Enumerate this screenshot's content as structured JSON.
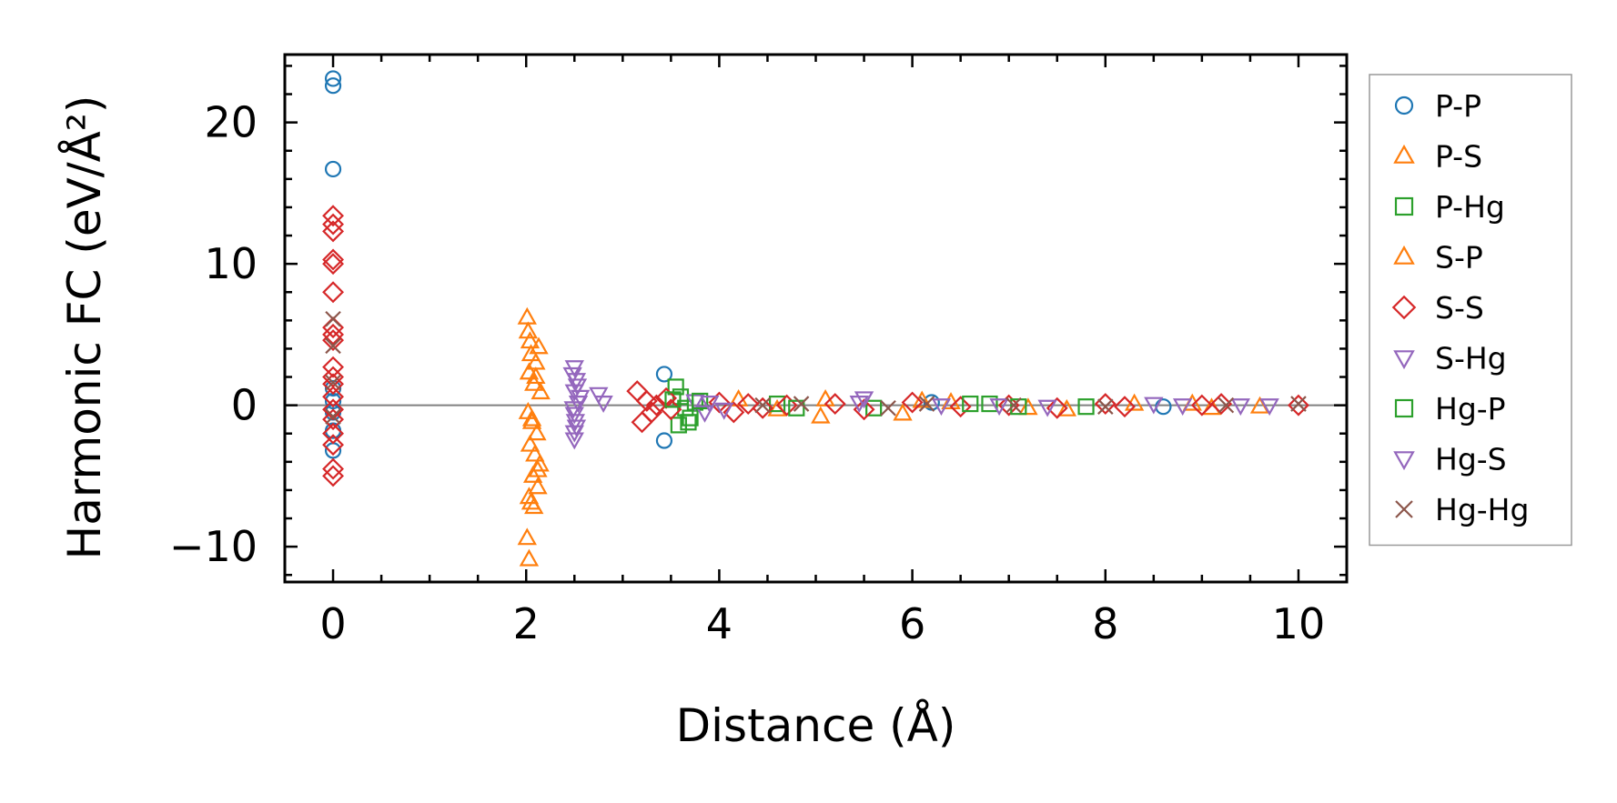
{
  "chart_data": {
    "type": "scatter",
    "xlabel": "Distance (Å)",
    "ylabel": "Harmonic FC (eV/Å²)",
    "xlim": [
      -0.5,
      10.5
    ],
    "ylim": [
      -12.5,
      24.8
    ],
    "x_ticks": [
      "0",
      "2",
      "4",
      "6",
      "8",
      "10"
    ],
    "x_tick_values": [
      0,
      2,
      4,
      6,
      8,
      10
    ],
    "y_ticks": [
      "−10",
      "0",
      "10",
      "20"
    ],
    "y_tick_values": [
      -10,
      0,
      10,
      20
    ],
    "x_minor_step": 0.5,
    "y_minor_step": 2,
    "zero_line": true,
    "grid": false,
    "legend_position": "outside-right",
    "series": [
      {
        "name": "P-P",
        "marker": "circle",
        "color": "#1f77b4",
        "points": [
          [
            0,
            23.1
          ],
          [
            0,
            22.6
          ],
          [
            0,
            16.7
          ],
          [
            0,
            1.2
          ],
          [
            0,
            0.3
          ],
          [
            0,
            -0.5
          ],
          [
            0,
            -1.8
          ],
          [
            0,
            -3.2
          ],
          [
            3.43,
            2.2
          ],
          [
            3.43,
            -2.5
          ],
          [
            6.2,
            0.2
          ],
          [
            8.6,
            -0.1
          ]
        ]
      },
      {
        "name": "P-S",
        "marker": "triangle-up",
        "color": "#ff7f0e",
        "points": [
          [
            2.01,
            6.2
          ],
          [
            2.02,
            5.2
          ],
          [
            2.05,
            3.6
          ],
          [
            2.1,
            3.0
          ],
          [
            2.13,
            4.1
          ],
          [
            2.03,
            2.3
          ],
          [
            2.08,
            1.5
          ],
          [
            2.15,
            0.9
          ],
          [
            2.02,
            -0.5
          ],
          [
            2.06,
            -1.2
          ],
          [
            2.11,
            -2.0
          ],
          [
            2.04,
            -2.8
          ],
          [
            2.09,
            -3.5
          ],
          [
            2.14,
            -4.2
          ],
          [
            2.07,
            -5.0
          ],
          [
            2.12,
            -5.8
          ],
          [
            2.03,
            -6.5
          ],
          [
            2.08,
            -7.2
          ],
          [
            2.01,
            -9.4
          ],
          [
            2.03,
            -10.9
          ],
          [
            4.6,
            -0.3
          ],
          [
            5.05,
            -0.8
          ],
          [
            5.1,
            0.4
          ],
          [
            5.9,
            -0.6
          ],
          [
            6.4,
            0.2
          ],
          [
            7.6,
            -0.3
          ],
          [
            8.3,
            0.1
          ],
          [
            9.1,
            -0.2
          ]
        ]
      },
      {
        "name": "P-Hg",
        "marker": "square",
        "color": "#2ca02c",
        "points": [
          [
            3.55,
            1.3
          ],
          [
            3.6,
            0.6
          ],
          [
            3.65,
            -0.2
          ],
          [
            3.7,
            -0.9
          ],
          [
            3.58,
            -1.4
          ],
          [
            3.75,
            0.2
          ],
          [
            4.6,
            0.1
          ],
          [
            5.6,
            -0.2
          ],
          [
            6.8,
            0.1
          ],
          [
            7.8,
            -0.1
          ]
        ]
      },
      {
        "name": "S-P",
        "marker": "triangle-up",
        "color": "#ff7f0e",
        "points": [
          [
            2.04,
            4.5
          ],
          [
            2.1,
            2.0
          ],
          [
            2.06,
            -1.0
          ],
          [
            2.12,
            -4.6
          ],
          [
            2.05,
            -6.9
          ],
          [
            4.2,
            0.4
          ],
          [
            6.1,
            0.3
          ],
          [
            7.2,
            -0.2
          ],
          [
            8.9,
            0.1
          ],
          [
            9.6,
            -0.1
          ]
        ]
      },
      {
        "name": "S-S",
        "marker": "diamond",
        "color": "#d62728",
        "points": [
          [
            0,
            13.4
          ],
          [
            0,
            12.8
          ],
          [
            0,
            12.3
          ],
          [
            0,
            10.3
          ],
          [
            0,
            10.0
          ],
          [
            0,
            8.0
          ],
          [
            0,
            5.5
          ],
          [
            0,
            5.0
          ],
          [
            0,
            4.6
          ],
          [
            0,
            2.7
          ],
          [
            0,
            2.0
          ],
          [
            0,
            1.5
          ],
          [
            0,
            0.6
          ],
          [
            0,
            -0.3
          ],
          [
            0,
            -1.0
          ],
          [
            0,
            -2.0
          ],
          [
            0,
            -2.8
          ],
          [
            0,
            -4.5
          ],
          [
            0,
            -5.0
          ],
          [
            3.15,
            1.0
          ],
          [
            3.2,
            -1.2
          ],
          [
            3.25,
            0.3
          ],
          [
            3.3,
            -0.5
          ],
          [
            3.35,
            0.0
          ],
          [
            3.45,
            0.5
          ],
          [
            3.5,
            -0.3
          ],
          [
            4.0,
            0.2
          ],
          [
            4.15,
            -0.5
          ],
          [
            4.3,
            0.1
          ],
          [
            4.45,
            -0.2
          ],
          [
            4.7,
            0.0
          ],
          [
            5.2,
            0.1
          ],
          [
            5.5,
            -0.3
          ],
          [
            6.0,
            0.2
          ],
          [
            6.5,
            -0.1
          ],
          [
            7.0,
            0.0
          ],
          [
            7.5,
            -0.2
          ],
          [
            8.0,
            0.1
          ],
          [
            8.2,
            -0.1
          ],
          [
            9.0,
            0.0
          ],
          [
            9.2,
            0.1
          ],
          [
            10.0,
            0.0
          ]
        ]
      },
      {
        "name": "S-Hg",
        "marker": "triangle-down",
        "color": "#9467bd",
        "points": [
          [
            2.5,
            2.7
          ],
          [
            2.52,
            1.8
          ],
          [
            2.5,
            1.0
          ],
          [
            2.54,
            0.2
          ],
          [
            2.5,
            -0.6
          ],
          [
            2.52,
            -1.5
          ],
          [
            2.5,
            -2.4
          ],
          [
            2.75,
            0.8
          ],
          [
            2.8,
            0.2
          ],
          [
            3.75,
            0.3
          ],
          [
            3.85,
            -0.5
          ],
          [
            5.5,
            0.5
          ],
          [
            6.3,
            0.0
          ],
          [
            7.4,
            -0.1
          ],
          [
            8.8,
            0.0
          ],
          [
            9.7,
            0.0
          ]
        ]
      },
      {
        "name": "Hg-P",
        "marker": "square",
        "color": "#2ca02c",
        "points": [
          [
            3.52,
            0.4
          ],
          [
            3.68,
            -1.2
          ],
          [
            3.8,
            0.3
          ],
          [
            4.8,
            -0.2
          ],
          [
            6.6,
            0.1
          ],
          [
            7.1,
            -0.1
          ]
        ]
      },
      {
        "name": "Hg-S",
        "marker": "triangle-down",
        "color": "#9467bd",
        "points": [
          [
            2.48,
            2.2
          ],
          [
            2.53,
            1.4
          ],
          [
            2.49,
            -0.2
          ],
          [
            2.51,
            -1.1
          ],
          [
            2.5,
            -1.9
          ],
          [
            2.56,
            0.6
          ],
          [
            3.9,
            0.2
          ],
          [
            4.05,
            -0.3
          ],
          [
            5.45,
            0.2
          ],
          [
            6.9,
            0.0
          ],
          [
            8.5,
            0.1
          ],
          [
            9.4,
            0.0
          ]
        ]
      },
      {
        "name": "Hg-Hg",
        "marker": "cross",
        "color": "#8c564b",
        "points": [
          [
            0,
            6.1
          ],
          [
            0,
            4.2
          ],
          [
            0,
            1.6
          ],
          [
            0,
            -0.8
          ],
          [
            4.45,
            0.0
          ],
          [
            4.85,
            0.1
          ],
          [
            5.75,
            -0.2
          ],
          [
            6.15,
            0.1
          ],
          [
            7.05,
            0.0
          ],
          [
            8.0,
            -0.1
          ],
          [
            9.25,
            0.0
          ],
          [
            10.0,
            0.1
          ]
        ]
      }
    ]
  }
}
